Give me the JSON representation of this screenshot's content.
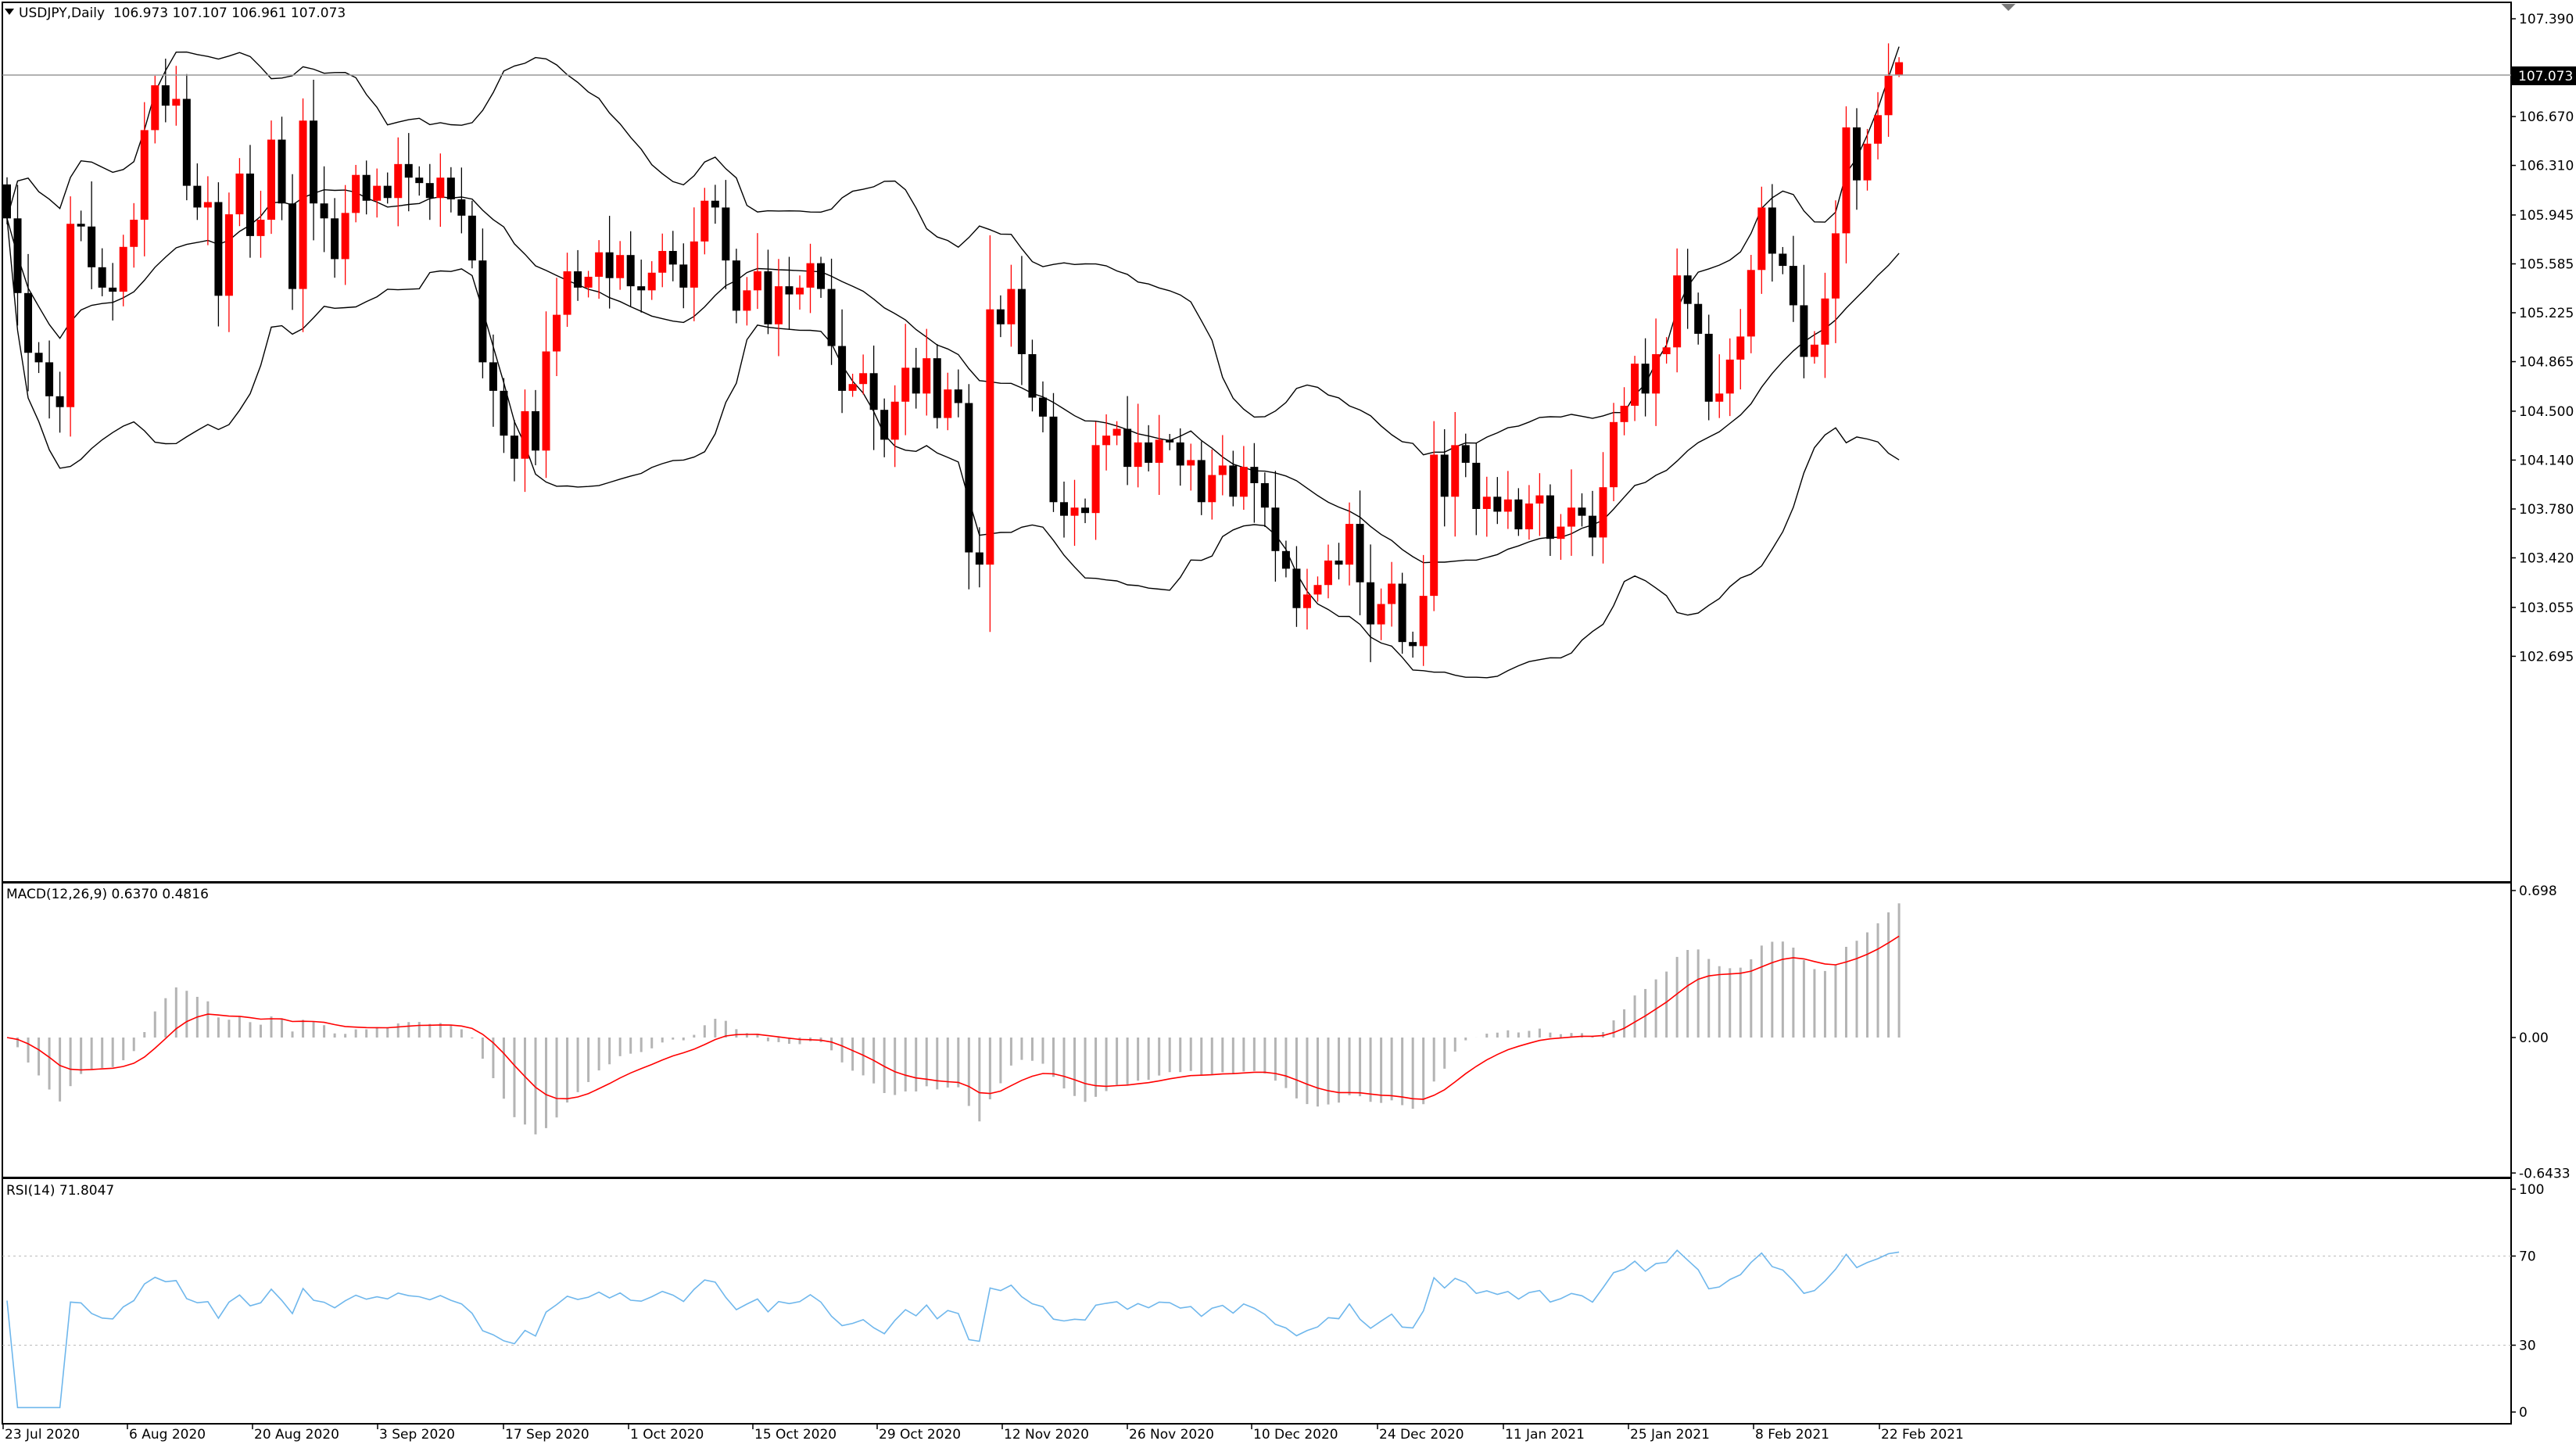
{
  "main": {
    "header": "USDJPY,Daily  106.973 107.107 106.961 107.073",
    "menu_icon": "triangle-down-icon",
    "price_tag": "107.073",
    "y_ticks": [
      "107.390",
      "106.670",
      "106.310",
      "105.945",
      "105.585",
      "105.225",
      "104.865",
      "104.500",
      "104.140",
      "103.780",
      "103.420",
      "103.055",
      "102.695"
    ]
  },
  "macd": {
    "header": "MACD(12,26,9) 0.6370 0.4816",
    "y_ticks": [
      "0.698",
      "0.00",
      "-0.6433"
    ]
  },
  "rsi": {
    "header": "RSI(14) 71.8047",
    "y_ticks": [
      "100",
      "70",
      "30",
      "0"
    ]
  },
  "x_ticks": [
    "23 Jul 2020",
    "6 Aug 2020",
    "20 Aug 2020",
    "3 Sep 2020",
    "17 Sep 2020",
    "1 Oct 2020",
    "15 Oct 2020",
    "29 Oct 2020",
    "12 Nov 2020",
    "26 Nov 2020",
    "10 Dec 2020",
    "24 Dec 2020",
    "11 Jan 2021",
    "25 Jan 2021",
    "8 Feb 2021",
    "22 Feb 2021"
  ],
  "colors": {
    "up": "#ff0000",
    "down": "#000000",
    "signal": "#ff0000",
    "histogram": "#b4b4b4",
    "rsi": "#6fb7ec",
    "band": "#000000"
  },
  "chart_data": [
    {
      "type": "candlestick",
      "symbol": "USDJPY",
      "timeframe": "Daily",
      "last_bar": {
        "open": 106.973,
        "high": 107.107,
        "low": 106.961,
        "close": 107.073
      },
      "ylim": [
        102.55,
        107.45
      ],
      "indicators": [
        "Bollinger Bands"
      ],
      "close": [
        105.92,
        105.37,
        104.93,
        104.86,
        104.61,
        104.53,
        105.88,
        105.86,
        105.56,
        105.41,
        105.38,
        105.71,
        105.91,
        106.57,
        106.9,
        106.75,
        106.8,
        106.16,
        106.0,
        106.04,
        105.35,
        105.95,
        106.25,
        105.79,
        105.91,
        106.5,
        106.03,
        105.4,
        106.64,
        106.03,
        105.92,
        105.62,
        105.96,
        106.24,
        106.05,
        106.16,
        106.07,
        106.32,
        106.22,
        106.18,
        106.07,
        106.22,
        106.06,
        105.94,
        105.61,
        104.86,
        104.65,
        104.32,
        104.15,
        104.5,
        104.21,
        104.94,
        105.21,
        105.53,
        105.41,
        105.49,
        105.67,
        105.48,
        105.65,
        105.42,
        105.39,
        105.52,
        105.68,
        105.58,
        105.41,
        105.75,
        106.05,
        106.0,
        105.61,
        105.24,
        105.39,
        105.53,
        105.14,
        105.42,
        105.36,
        105.41,
        105.59,
        105.4,
        104.98,
        104.65,
        104.7,
        104.78,
        104.51,
        104.29,
        104.57,
        104.82,
        104.63,
        104.89,
        104.45,
        104.66,
        104.56,
        103.46,
        103.37,
        105.25,
        105.14,
        105.4,
        104.92,
        104.6,
        104.46,
        103.83,
        103.73,
        103.79,
        103.75,
        104.25,
        104.32,
        104.37,
        104.09,
        104.27,
        104.12,
        104.29,
        104.27,
        104.1,
        104.14,
        103.83,
        104.03,
        104.1,
        103.87,
        104.09,
        103.97,
        103.79,
        103.47,
        103.34,
        103.05,
        103.15,
        103.22,
        103.4,
        103.37,
        103.67,
        103.24,
        102.93,
        103.08,
        103.23,
        102.8,
        102.77,
        103.14,
        104.18,
        103.87,
        104.25,
        104.12,
        103.78,
        103.87,
        103.76,
        103.85,
        103.63,
        103.82,
        103.88,
        103.56,
        103.65,
        103.79,
        103.73,
        103.57,
        103.94,
        104.42,
        104.54,
        104.85,
        104.63,
        104.92,
        104.97,
        105.5,
        105.29,
        105.07,
        104.57,
        104.63,
        104.88,
        105.05,
        105.54,
        106.0,
        105.66,
        105.57,
        105.28,
        104.9,
        104.99,
        105.33,
        105.81,
        106.59,
        106.2,
        106.47,
        106.68,
        106.97,
        107.07
      ]
    },
    {
      "type": "bar",
      "title": "MACD(12,26,9)",
      "main": 0.637,
      "signal": 0.4816,
      "ylim": [
        -0.6433,
        0.698
      ]
    },
    {
      "type": "line",
      "title": "RSI(14)",
      "last": 71.8047,
      "levels": [
        70,
        30
      ],
      "ylim": [
        0,
        100
      ]
    }
  ]
}
